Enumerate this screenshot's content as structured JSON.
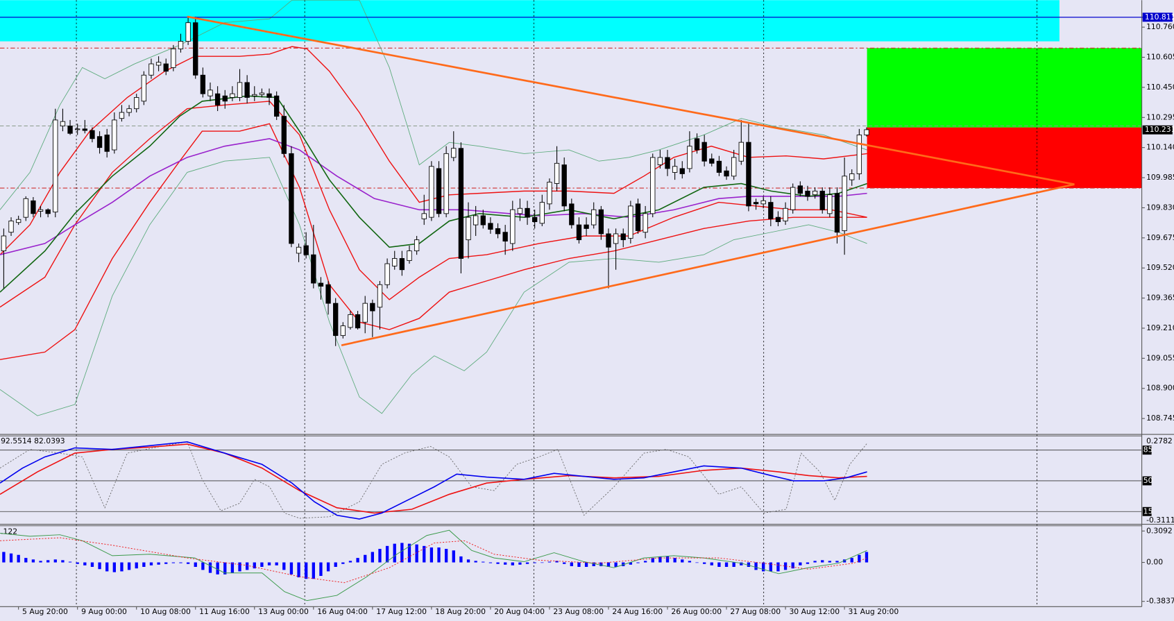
{
  "chart_data": [
    {
      "type": "candlestick",
      "categories": [
        null,
        null,
        "5 Aug 20:00",
        null,
        null,
        null,
        null,
        null,
        null,
        null,
        "9 Aug 00:00",
        null,
        null,
        null,
        null,
        null,
        null,
        null,
        "10 Aug 08:00",
        null,
        null,
        null,
        null,
        null,
        null,
        null,
        "11 Aug 16:00",
        null,
        null,
        null,
        null,
        null,
        null,
        null,
        "13 Aug 00:00",
        null,
        null,
        null,
        null,
        null,
        null,
        null,
        "16 Aug 04:00",
        null,
        null,
        null,
        null,
        null,
        null,
        null,
        "17 Aug 12:00",
        null,
        null,
        null,
        null,
        null,
        null,
        null,
        "18 Aug 20:00",
        null,
        null,
        null,
        null,
        null,
        null,
        null,
        "20 Aug 04:00",
        null,
        null,
        null,
        null,
        null,
        null,
        null,
        "23 Aug 08:00",
        null,
        null,
        null,
        null,
        null,
        null,
        null,
        "24 Aug 16:00",
        null,
        null,
        null,
        null,
        null,
        null,
        null,
        "26 Aug 00:00",
        null,
        null,
        null,
        null,
        null,
        null,
        null,
        "27 Aug 08:00",
        null,
        null,
        null,
        null,
        null,
        null,
        null,
        "30 Aug 12:00",
        null,
        null,
        null,
        null,
        null,
        null,
        null,
        "31 Aug 20:00",
        null,
        null,
        null
      ],
      "open": [
        109.608,
        109.704,
        109.754,
        109.781,
        109.866,
        109.812,
        109.82,
        109.808,
        110.251,
        110.251,
        110.232,
        110.236,
        110.228,
        110.197,
        110.205,
        110.128,
        110.29,
        110.321,
        110.34,
        110.379,
        110.513,
        110.564,
        110.571,
        110.552,
        110.648,
        110.687,
        110.783,
        110.513,
        110.406,
        110.417,
        110.406,
        110.398,
        110.398,
        110.475,
        110.406,
        110.413,
        110.417,
        110.406,
        110.301,
        110.109,
        109.596,
        109.635,
        109.588,
        109.442,
        109.434,
        109.338,
        109.172,
        109.214,
        109.28,
        109.241,
        109.338,
        109.318,
        109.434,
        109.53,
        109.569,
        109.558,
        109.608,
        109.773,
        109.781,
        110.032,
        109.8,
        110.089,
        110.136,
        109.665,
        109.742,
        109.789,
        109.75,
        109.723,
        109.704,
        109.646,
        109.8,
        109.827,
        109.781,
        109.75,
        109.85,
        109.955,
        110.051,
        109.85,
        109.742,
        109.742,
        109.742,
        109.82,
        109.696,
        109.646,
        109.696,
        109.673,
        109.85,
        109.704,
        109.8,
        110.051,
        110.089,
        110.012,
        110.032,
        110.032,
        110.186,
        110.167,
        110.082,
        110.07,
        110.02,
        109.993,
        110.07,
        110.167,
        109.858,
        109.85,
        109.858,
        109.781,
        109.762,
        109.82,
        109.943,
        109.916,
        109.897,
        109.916,
        109.8,
        109.904,
        109.712,
        109.974,
        110.005,
        110.205
      ],
      "high": [
        109.723,
        109.781,
        109.789,
        109.889,
        109.885,
        109.839,
        109.827,
        110.34,
        110.34,
        110.282,
        110.263,
        110.282,
        110.244,
        110.224,
        110.236,
        110.321,
        110.359,
        110.359,
        110.417,
        110.533,
        110.598,
        110.61,
        110.598,
        110.668,
        110.726,
        110.814,
        110.814,
        110.552,
        110.475,
        110.456,
        110.436,
        110.456,
        110.544,
        110.513,
        110.456,
        110.444,
        110.444,
        110.429,
        110.359,
        110.147,
        109.646,
        109.704,
        109.742,
        109.473,
        109.453,
        109.365,
        109.241,
        109.299,
        109.299,
        109.376,
        109.357,
        109.453,
        109.569,
        109.608,
        109.608,
        109.635,
        109.685,
        109.897,
        110.07,
        110.07,
        110.147,
        110.224,
        110.167,
        109.858,
        109.839,
        109.82,
        109.781,
        109.75,
        109.742,
        109.866,
        109.877,
        109.866,
        109.82,
        109.897,
        109.981,
        110.147,
        110.089,
        109.877,
        109.781,
        109.781,
        109.858,
        109.839,
        109.723,
        109.723,
        109.723,
        109.866,
        109.877,
        109.839,
        110.109,
        110.128,
        110.128,
        110.082,
        110.07,
        110.224,
        110.213,
        110.205,
        110.109,
        110.097,
        110.043,
        110.128,
        110.282,
        110.263,
        109.877,
        109.889,
        109.889,
        109.812,
        109.858,
        109.955,
        109.966,
        109.943,
        109.935,
        109.935,
        109.935,
        109.935,
        110.089,
        110.028,
        110.236,
        110.244
      ],
      "low": [
        109.415,
        109.685,
        109.742,
        109.762,
        109.781,
        109.781,
        109.781,
        109.781,
        110.224,
        110.205,
        110.205,
        110.213,
        110.167,
        110.109,
        110.089,
        110.109,
        110.274,
        110.301,
        110.321,
        110.359,
        110.494,
        110.533,
        110.513,
        110.533,
        110.629,
        110.668,
        110.494,
        110.398,
        110.379,
        110.328,
        110.34,
        110.379,
        110.379,
        110.367,
        110.379,
        110.398,
        110.359,
        110.282,
        110.089,
        109.627,
        109.55,
        109.569,
        109.415,
        109.357,
        109.28,
        109.118,
        109.157,
        109.203,
        109.203,
        109.184,
        109.164,
        109.203,
        109.415,
        109.511,
        109.48,
        109.542,
        109.588,
        109.742,
        109.762,
        109.781,
        109.781,
        110.07,
        109.492,
        109.569,
        109.685,
        109.723,
        109.696,
        109.673,
        109.588,
        109.608,
        109.762,
        109.742,
        109.723,
        109.735,
        109.82,
        109.916,
        109.812,
        109.723,
        109.646,
        109.685,
        109.723,
        109.665,
        109.415,
        109.511,
        109.627,
        109.646,
        109.696,
        109.673,
        109.781,
        110.032,
        109.993,
        109.974,
        109.981,
        110.012,
        110.109,
        110.043,
        110.043,
        109.993,
        109.974,
        109.974,
        110.051,
        109.812,
        109.82,
        109.827,
        109.735,
        109.735,
        109.742,
        109.8,
        109.889,
        109.866,
        109.877,
        109.8,
        109.781,
        109.646,
        109.588,
        109.943,
        109.974,
        110.197
      ],
      "close": [
        109.685,
        109.762,
        109.77,
        109.877,
        109.8,
        109.82,
        109.8,
        110.282,
        110.274,
        110.213,
        110.236,
        110.228,
        110.186,
        110.14,
        110.12,
        110.282,
        110.321,
        110.34,
        110.398,
        110.513,
        110.571,
        110.579,
        110.533,
        110.648,
        110.687,
        110.783,
        110.513,
        110.417,
        110.436,
        110.359,
        110.379,
        110.417,
        110.475,
        110.398,
        110.413,
        110.421,
        110.398,
        110.301,
        110.109,
        109.646,
        109.627,
        109.588,
        109.442,
        109.426,
        109.338,
        109.172,
        109.222,
        109.28,
        109.211,
        109.338,
        109.299,
        109.434,
        109.542,
        109.569,
        109.511,
        109.608,
        109.665,
        109.8,
        110.043,
        109.8,
        110.109,
        110.136,
        109.569,
        109.781,
        109.789,
        109.742,
        109.719,
        109.696,
        109.658,
        109.82,
        109.827,
        109.781,
        109.758,
        109.858,
        109.962,
        110.059,
        109.839,
        109.742,
        109.665,
        109.723,
        109.82,
        109.696,
        109.627,
        109.696,
        109.665,
        109.839,
        109.712,
        109.8,
        110.089,
        110.089,
        110.032,
        110.043,
        110.005,
        110.147,
        110.128,
        110.07,
        110.059,
        110.012,
        109.993,
        110.089,
        110.167,
        109.839,
        109.85,
        109.866,
        109.773,
        109.758,
        109.827,
        109.935,
        109.904,
        109.889,
        109.916,
        109.82,
        109.897,
        109.704,
        109.993,
        110.005,
        110.205,
        110.232
      ],
      "up_color": "#ffffff",
      "down_color": "#000000",
      "ylim": [
        108.663,
        110.899
      ],
      "yticks": [
        {
          "value": 110.76,
          "label": "110.760"
        },
        110.605,
        {
          "value": 110.45,
          "label": "110.450"
        },
        110.295,
        {
          "value": 110.14,
          "label": "110.140"
        },
        109.985,
        {
          "value": 109.83,
          "label": "109.830"
        },
        109.675,
        {
          "value": 109.52,
          "label": "109.520"
        },
        109.365,
        {
          "value": 109.21,
          "label": "109.210"
        },
        109.055,
        {
          "value": 108.9,
          "label": "108.900"
        },
        108.745
      ],
      "level_price": 110.811,
      "level_color": "#0000cc",
      "last_price": 110.231
    },
    {
      "type": "levels",
      "title": "92.5514 82.0393",
      "ylim": [
        0,
        100
      ],
      "yticks": [
        85,
        50,
        15
      ],
      "max_label": 0.2782,
      "min_label": -0.3111
    },
    {
      "type": "bar",
      "title": ".122",
      "color": "#0000ff",
      "values": [
        0.103,
        0.088,
        0.074,
        0.044,
        0.029,
        0.015,
        0.022,
        0.029,
        0.022,
        0.007,
        -0.015,
        -0.029,
        -0.044,
        -0.066,
        -0.088,
        -0.096,
        -0.088,
        -0.074,
        -0.059,
        -0.044,
        -0.029,
        -0.022,
        -0.015,
        -0.007,
        -0.007,
        -0.015,
        -0.044,
        -0.074,
        -0.103,
        -0.118,
        -0.118,
        -0.103,
        -0.088,
        -0.074,
        -0.059,
        -0.044,
        -0.029,
        -0.029,
        -0.074,
        -0.118,
        -0.147,
        -0.162,
        -0.162,
        -0.133,
        -0.088,
        -0.044,
        -0.015,
        0.015,
        0.044,
        0.074,
        0.103,
        0.133,
        0.162,
        0.184,
        0.192,
        0.184,
        0.177,
        0.162,
        0.147,
        0.147,
        0.133,
        0.118,
        0.059,
        0.029,
        0.015,
        0.007,
        -0.007,
        -0.015,
        -0.022,
        -0.029,
        -0.022,
        -0.015,
        -0.007,
        0,
        0.007,
        0.015,
        -0.015,
        -0.037,
        -0.044,
        -0.044,
        -0.037,
        -0.037,
        -0.044,
        -0.044,
        -0.037,
        -0.022,
        -0.007,
        0.015,
        0.044,
        0.059,
        0.059,
        0.044,
        0.029,
        0.015,
        0,
        -0.015,
        -0.029,
        -0.044,
        -0.044,
        -0.044,
        -0.029,
        -0.044,
        -0.074,
        -0.088,
        -0.088,
        -0.088,
        -0.074,
        -0.059,
        -0.029,
        -0.015,
        0.015,
        0.022,
        0.015,
        0.015,
        0.029,
        0.044,
        0.074,
        0.103
      ],
      "ylim": [
        -0.3837,
        0.3092
      ],
      "yticks": [
        0.3092,
        {
          "value": 0,
          "label": "0.00"
        },
        -0.3837
      ]
    }
  ]
}
